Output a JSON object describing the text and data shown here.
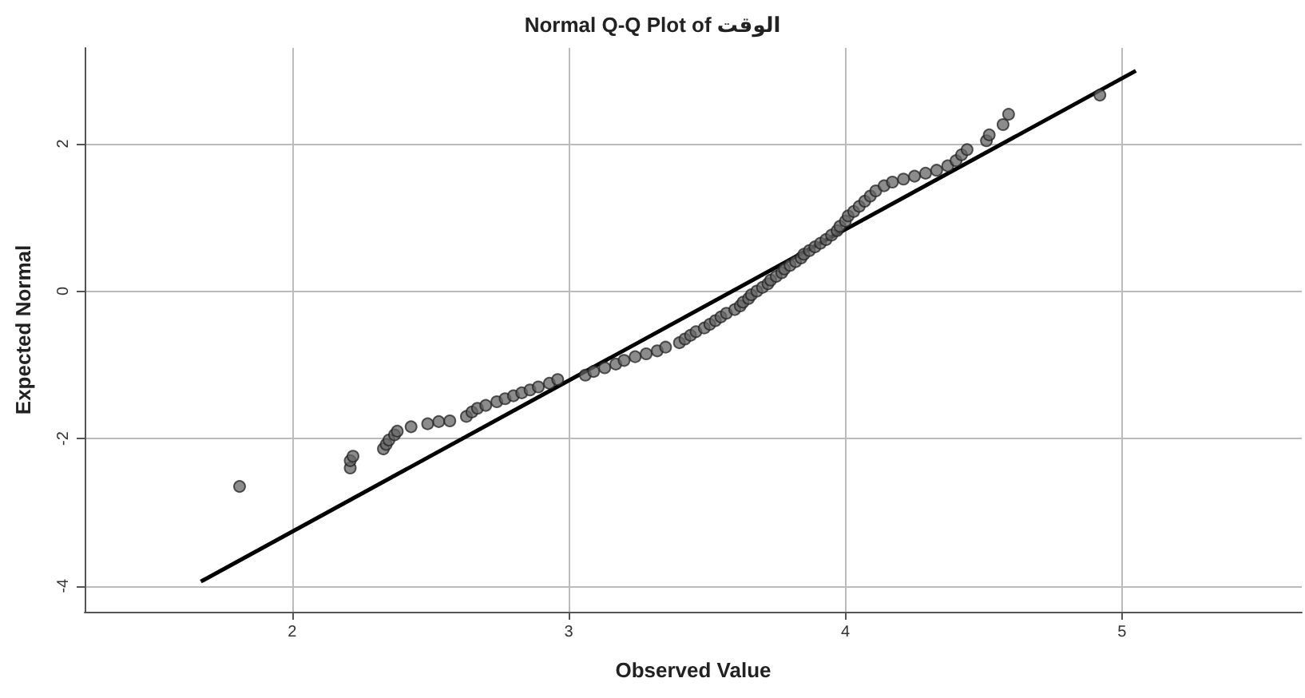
{
  "chart_data": {
    "type": "scatter",
    "title": "Normal Q-Q Plot of الوقت",
    "xlabel": "Observed Value",
    "ylabel": "Expected Normal",
    "xlim": [
      1.25,
      5.65
    ],
    "ylim": [
      -4.35,
      3.3
    ],
    "xticks": [
      2,
      3,
      4,
      5
    ],
    "yticks": [
      -4,
      -2,
      0,
      2
    ],
    "grid": true,
    "series": [
      {
        "marker": "circle",
        "color": "#666666",
        "x": [
          1.81,
          2.21,
          2.21,
          2.22,
          2.33,
          2.34,
          2.35,
          2.37,
          2.38,
          2.43,
          2.49,
          2.53,
          2.57,
          2.63,
          2.65,
          2.67,
          2.7,
          2.74,
          2.77,
          2.8,
          2.83,
          2.86,
          2.89,
          2.93,
          2.96,
          3.06,
          3.09,
          3.13,
          3.17,
          3.2,
          3.24,
          3.28,
          3.32,
          3.35,
          3.4,
          3.42,
          3.44,
          3.46,
          3.49,
          3.51,
          3.53,
          3.55,
          3.57,
          3.6,
          3.62,
          3.63,
          3.65,
          3.66,
          3.68,
          3.7,
          3.72,
          3.73,
          3.75,
          3.77,
          3.78,
          3.8,
          3.82,
          3.84,
          3.85,
          3.87,
          3.89,
          3.91,
          3.93,
          3.95,
          3.97,
          3.98,
          4.0,
          4.01,
          4.03,
          4.05,
          4.07,
          4.09,
          4.11,
          4.14,
          4.17,
          4.21,
          4.25,
          4.29,
          4.33,
          4.37,
          4.4,
          4.42,
          4.44,
          4.51,
          4.52,
          4.57,
          4.59,
          4.92
        ],
        "values": [
          -2.65,
          -2.4,
          -2.3,
          -2.24,
          -2.14,
          -2.08,
          -2.02,
          -1.95,
          -1.9,
          -1.84,
          -1.8,
          -1.77,
          -1.76,
          -1.7,
          -1.64,
          -1.59,
          -1.55,
          -1.5,
          -1.46,
          -1.42,
          -1.38,
          -1.34,
          -1.3,
          -1.25,
          -1.2,
          -1.14,
          -1.09,
          -1.04,
          -0.99,
          -0.94,
          -0.89,
          -0.85,
          -0.81,
          -0.76,
          -0.7,
          -0.65,
          -0.6,
          -0.55,
          -0.5,
          -0.45,
          -0.4,
          -0.35,
          -0.3,
          -0.25,
          -0.2,
          -0.15,
          -0.1,
          -0.05,
          0.0,
          0.05,
          0.1,
          0.15,
          0.2,
          0.25,
          0.3,
          0.35,
          0.4,
          0.45,
          0.5,
          0.55,
          0.6,
          0.65,
          0.7,
          0.76,
          0.82,
          0.88,
          0.95,
          1.02,
          1.08,
          1.15,
          1.22,
          1.29,
          1.36,
          1.43,
          1.48,
          1.52,
          1.56,
          1.6,
          1.64,
          1.7,
          1.77,
          1.85,
          1.92,
          2.04,
          2.12,
          2.26,
          2.4,
          2.66
        ]
      },
      {
        "type": "line",
        "marker": "none",
        "color": "#000000",
        "x": [
          1.67,
          5.05
        ],
        "values": [
          -3.94,
          2.99
        ]
      }
    ]
  }
}
